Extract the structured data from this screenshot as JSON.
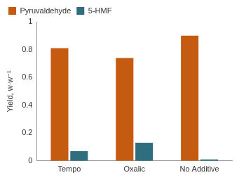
{
  "chart_data": {
    "type": "bar",
    "y_label": "Yield, w·w⁻¹",
    "categories": [
      "Tempo",
      "Oxalic",
      "No Additive"
    ],
    "series": [
      {
        "name": "Pyruvaldehyde",
        "color": "#c55a11",
        "values": [
          0.81,
          0.74,
          0.9
        ]
      },
      {
        "name": "5-HMF",
        "color": "#2e6e7e",
        "values": [
          0.07,
          0.13,
          0.01
        ]
      }
    ],
    "ylim": [
      0,
      1
    ],
    "yticks": [
      0,
      0.2,
      0.4,
      0.6,
      0.8,
      1
    ],
    "grid": false,
    "legend": "upper left"
  }
}
